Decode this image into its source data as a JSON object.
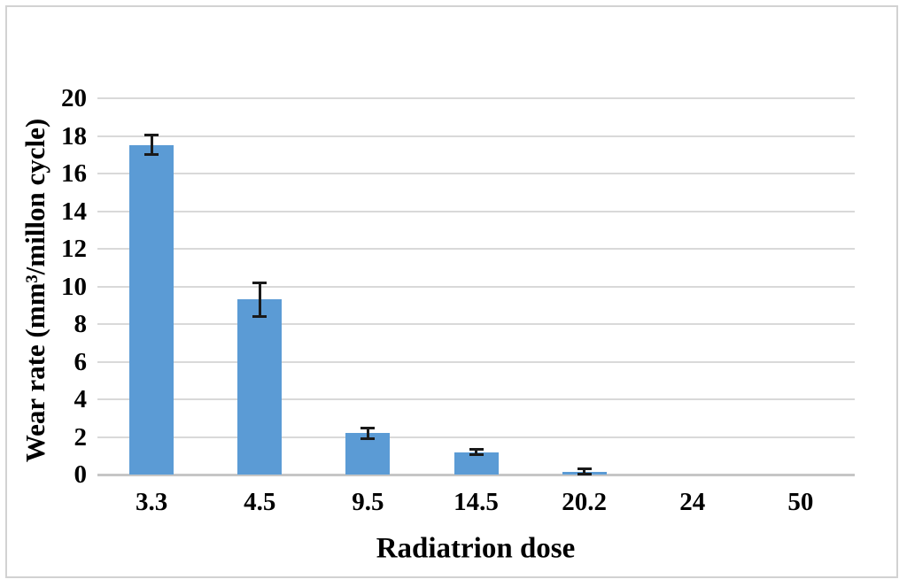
{
  "figure": {
    "background_color": "#ffffff",
    "border_color": "#d2d2d2"
  },
  "chart_data": {
    "type": "bar",
    "title": "",
    "xlabel": "Radiatrion dose",
    "ylabel": "Wear rate (mm³/millon cycle)",
    "categories": [
      "3.3",
      "4.5",
      "9.5",
      "14.5",
      "20.2",
      "24",
      "50"
    ],
    "series": [
      {
        "name": "Wear rate",
        "values": [
          17.5,
          9.3,
          2.2,
          1.2,
          0.15,
          0,
          0
        ],
        "error_plus": [
          0.55,
          0.9,
          0.3,
          0.15,
          0.2,
          0,
          0
        ],
        "error_minus": [
          0.5,
          0.9,
          0.3,
          0.15,
          0.15,
          0,
          0
        ]
      }
    ],
    "ylim": [
      0,
      20
    ],
    "yticks": [
      0,
      2,
      4,
      6,
      8,
      10,
      12,
      14,
      16,
      18,
      20
    ],
    "grid": "horizontal-only",
    "legend": "none",
    "bar_color": "#5b9bd5",
    "gridline_color": "#d9d9d9",
    "axis_line_color": "#c6c6c6",
    "error_bar_color": "#1a1a1a",
    "text_color": "#000000"
  }
}
